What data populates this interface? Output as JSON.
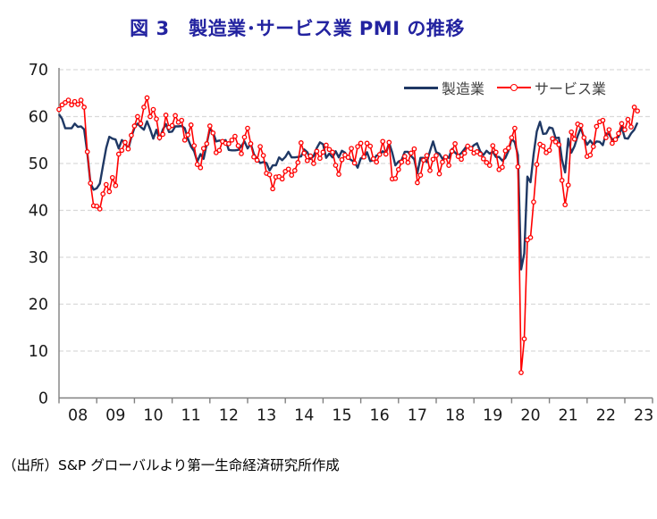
{
  "title": "図 3　製造業･サービス業 PMI の推移",
  "source_note": "（出所）S&P グローバルより第一生命経済研究所作成",
  "chart_data": {
    "type": "line",
    "title": "図 3　製造業･サービス業 PMI の推移",
    "x_start": "2008-01",
    "x_end": "2023-05",
    "frequency": "monthly",
    "x_tick_labels": [
      "08",
      "09",
      "10",
      "11",
      "12",
      "13",
      "14",
      "15",
      "16",
      "17",
      "18",
      "19",
      "20",
      "21",
      "22",
      "23"
    ],
    "ylim": [
      0,
      70
    ],
    "yticks": [
      0,
      10,
      20,
      30,
      40,
      50,
      60,
      70
    ],
    "grid": "horizontal-dashed",
    "legend_position": "top-right-inside",
    "colors": {
      "manufacturing": "#1F3864",
      "services": "#FF0000",
      "grid": "#D9D9D9",
      "axis": "#808080",
      "title": "#2323A0",
      "tick_text": "#1a1a1a"
    },
    "series": [
      {
        "name": "製造業",
        "color": "#1F3864",
        "marker": "none",
        "values": [
          60.5,
          59.5,
          57.5,
          57.5,
          57.5,
          58.5,
          57.8,
          57.9,
          57.3,
          52.2,
          45.8,
          44.4,
          44.7,
          45.7,
          49.5,
          53.3,
          55.7,
          55.3,
          55.1,
          53.2,
          55.0,
          54.5,
          53.0,
          55.6,
          57.6,
          58.5,
          57.8,
          57.2,
          59.0,
          57.3,
          55.3,
          57.2,
          55.1,
          57.2,
          58.4,
          56.7,
          56.8,
          57.9,
          57.9,
          58.0,
          57.5,
          55.3,
          53.6,
          52.6,
          50.4,
          52.0,
          51.0,
          54.2,
          57.5,
          56.6,
          54.7,
          54.9,
          54.8,
          55.0,
          52.9,
          52.8,
          52.8,
          52.9,
          53.7,
          54.7,
          53.2,
          54.2,
          52.0,
          51.0,
          50.1,
          50.3,
          50.1,
          48.5,
          49.6,
          49.6,
          51.3,
          50.7,
          51.4,
          52.5,
          51.3,
          51.3,
          51.4,
          51.5,
          53.0,
          52.4,
          51.0,
          51.6,
          53.3,
          54.5,
          54.1,
          51.2,
          52.1,
          51.3,
          52.6,
          51.3,
          52.7,
          52.3,
          51.2,
          50.7,
          50.3,
          49.1,
          51.1,
          51.1,
          52.4,
          50.5,
          50.7,
          51.7,
          51.8,
          52.6,
          52.1,
          54.4,
          52.3,
          49.6,
          50.4,
          50.7,
          52.5,
          52.5,
          51.6,
          50.9,
          47.9,
          51.2,
          51.2,
          50.3,
          52.6,
          54.7,
          52.4,
          52.1,
          51.0,
          51.6,
          51.2,
          53.1,
          52.3,
          51.7,
          52.2,
          53.1,
          54.0,
          53.2,
          53.9,
          54.3,
          52.6,
          51.8,
          52.7,
          52.1,
          52.5,
          51.4,
          51.4,
          50.6,
          51.2,
          52.7,
          55.3,
          54.5,
          51.8,
          27.4,
          30.8,
          47.2,
          46.0,
          52.0,
          56.8,
          58.9,
          56.3,
          56.4,
          57.7,
          57.5,
          55.4,
          55.5,
          50.8,
          48.1,
          55.3,
          52.3,
          53.7,
          55.9,
          57.6,
          55.5,
          54.0,
          54.9,
          54.0,
          54.7,
          54.6,
          53.9,
          56.4,
          56.2,
          55.1,
          55.3,
          55.7,
          57.8,
          55.4,
          55.3,
          56.4,
          57.2,
          58.7
        ]
      },
      {
        "name": "サービス業",
        "color": "#FF0000",
        "marker": "open-circle",
        "values": [
          61.5,
          62.5,
          63.0,
          63.5,
          62.5,
          63.2,
          62.6,
          63.5,
          62.0,
          52.5,
          45.8,
          41.0,
          40.9,
          40.3,
          43.5,
          45.5,
          44.0,
          47.0,
          45.3,
          52.0,
          52.8,
          54.5,
          53.1,
          56.0,
          58.0,
          60.0,
          58.5,
          62.0,
          64.0,
          60.0,
          61.5,
          59.5,
          55.5,
          56.2,
          60.3,
          57.7,
          58.1,
          60.2,
          58.8,
          59.2,
          55.0,
          56.1,
          58.2,
          53.8,
          49.8,
          49.1,
          53.2,
          54.2,
          58.0,
          56.5,
          52.3,
          52.8,
          54.7,
          54.3,
          54.2,
          55.0,
          55.8,
          53.8,
          52.1,
          55.6,
          57.5,
          54.2,
          51.4,
          50.7,
          53.6,
          51.7,
          47.9,
          47.6,
          44.6,
          47.1,
          47.2,
          46.7,
          48.3,
          48.8,
          47.5,
          48.5,
          50.2,
          54.4,
          52.2,
          50.6,
          51.6,
          50.0,
          52.6,
          51.1,
          52.4,
          53.9,
          53.0,
          52.4,
          49.6,
          47.7,
          50.8,
          51.8,
          51.3,
          53.2,
          50.1,
          53.6,
          54.3,
          51.4,
          54.3,
          53.7,
          51.0,
          50.3,
          51.9,
          54.7,
          52.0,
          54.5,
          46.7,
          46.8,
          48.7,
          50.3,
          51.5,
          50.2,
          52.2,
          53.1,
          45.9,
          47.5,
          50.7,
          51.7,
          48.5,
          50.9,
          51.7,
          47.8,
          50.3,
          51.4,
          49.6,
          52.6,
          54.2,
          51.5,
          50.9,
          52.2,
          53.7,
          53.2,
          52.2,
          52.5,
          52.0,
          51.0,
          50.2,
          49.6,
          53.8,
          52.4,
          48.7,
          49.2,
          52.7,
          53.3,
          55.5,
          57.5,
          49.3,
          5.4,
          12.6,
          33.7,
          34.2,
          41.8,
          49.8,
          54.1,
          53.7,
          52.3,
          52.8,
          55.3,
          54.6,
          54.0,
          46.4,
          41.2,
          45.4,
          56.7,
          55.2,
          58.4,
          58.1,
          55.5,
          51.5,
          51.8,
          53.6,
          57.9,
          58.9,
          59.2,
          55.5,
          57.2,
          54.3,
          55.1,
          56.4,
          58.5,
          57.2,
          59.4,
          57.8,
          62.0,
          61.2
        ]
      }
    ]
  }
}
